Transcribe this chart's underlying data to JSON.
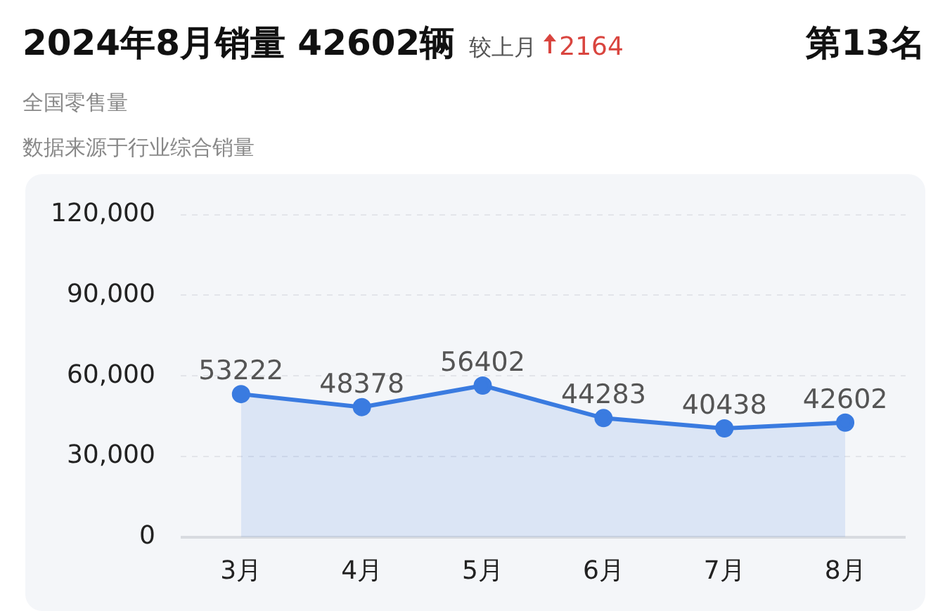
{
  "chart_data": {
    "type": "area",
    "title": "2024年8月销量  42602辆",
    "subtitle": "全国零售量",
    "annotations": [
      "较上月",
      "2164",
      "第13名",
      "数据来源于行业综合销量"
    ],
    "categories": [
      "3月",
      "4月",
      "5月",
      "6月",
      "7月",
      "8月"
    ],
    "series": [
      {
        "color": "#3a7be0",
        "values": [
          53222,
          48378,
          56402,
          44283,
          40438,
          42602
        ]
      }
    ],
    "ylim": [
      0,
      120000
    ],
    "yticks": [
      0,
      {
        "value": 30000,
        "label": "30,000"
      },
      {
        "value": 60000,
        "label": "60,000"
      },
      {
        "value": 90000,
        "label": "90,000"
      },
      {
        "value": 120000,
        "label": "120,000"
      }
    ],
    "grid": "y",
    "marker": "circle",
    "data_labels": true,
    "legend": false
  }
}
